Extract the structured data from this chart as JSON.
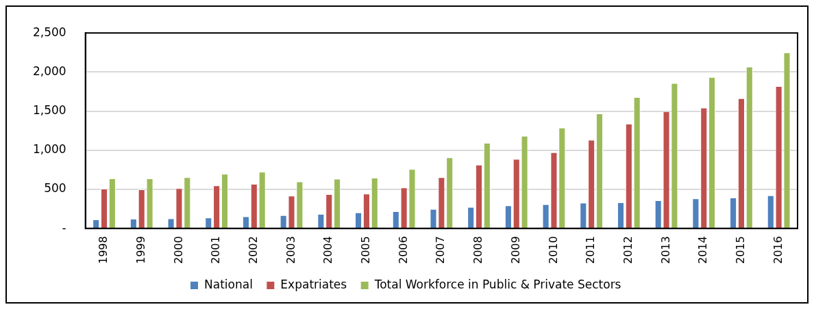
{
  "chart_data": {
    "type": "bar",
    "categories": [
      "1998",
      "1999",
      "2000",
      "2001",
      "2002",
      "2003",
      "2004",
      "2005",
      "2006",
      "2007",
      "2008",
      "2009",
      "2010",
      "2011",
      "2012",
      "2013",
      "2014",
      "2015",
      "2016"
    ],
    "series": [
      {
        "name": "National",
        "color": "#4f81bd",
        "values": [
          115,
          125,
          130,
          140,
          155,
          170,
          185,
          205,
          220,
          250,
          275,
          295,
          310,
          330,
          335,
          360,
          385,
          395,
          425
        ]
      },
      {
        "name": "Expatriates",
        "color": "#c0504d",
        "values": [
          510,
          500,
          515,
          550,
          570,
          420,
          440,
          445,
          525,
          655,
          815,
          890,
          975,
          1135,
          1340,
          1500,
          1545,
          1665,
          1820
        ]
      },
      {
        "name": "Total Workforce in Public & Private Sectors",
        "color": "#9bbb59",
        "values": [
          640,
          640,
          655,
          700,
          725,
          600,
          635,
          650,
          760,
          910,
          1095,
          1185,
          1290,
          1470,
          1680,
          1860,
          1935,
          2070,
          2250
        ]
      }
    ],
    "ylim": [
      0,
      2500
    ],
    "yticks": [
      {
        "value": 0,
        "label": "-"
      },
      {
        "value": 500,
        "label": "500"
      },
      {
        "value": 1000,
        "label": "1,000"
      },
      {
        "value": 1500,
        "label": "1,500"
      },
      {
        "value": 2000,
        "label": "2,000"
      },
      {
        "value": 2500,
        "label": "2,500"
      }
    ],
    "grid": "y",
    "legend": "bottom"
  }
}
